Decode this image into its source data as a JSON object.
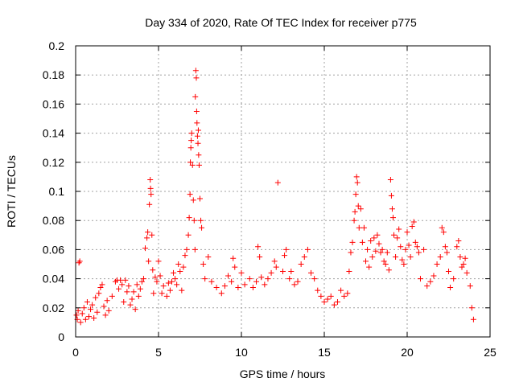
{
  "chart_data": {
    "type": "scatter",
    "title": "Day 334 of 2020, Rate Of TEC Index for receiver p775",
    "xlabel": "GPS time / hours",
    "ylabel": "ROTI / TECUs",
    "xlim": [
      0,
      25
    ],
    "ylim": [
      0,
      0.2
    ],
    "xticks": [
      0,
      5,
      10,
      15,
      20,
      25
    ],
    "yticks": [
      0,
      0.02,
      0.04,
      0.06,
      0.08,
      0.1,
      0.12,
      0.14,
      0.16,
      0.18,
      0.2
    ],
    "xtick_labels": [
      "0",
      "5",
      "10",
      "15",
      "20",
      "25"
    ],
    "ytick_labels": [
      "0",
      "0.02",
      "0.04",
      "0.06",
      "0.08",
      "0.1",
      "0.12",
      "0.14",
      "0.16",
      "0.18",
      "0.2"
    ],
    "grid": true,
    "marker": "+",
    "series": [
      {
        "name": "ROTI",
        "color": "#ff0000",
        "points": [
          [
            0.05,
            0.015
          ],
          [
            0.1,
            0.012
          ],
          [
            0.15,
            0.018
          ],
          [
            0.2,
            0.051
          ],
          [
            0.25,
            0.052
          ],
          [
            0.3,
            0.01
          ],
          [
            0.4,
            0.016
          ],
          [
            0.5,
            0.02
          ],
          [
            0.6,
            0.012
          ],
          [
            0.7,
            0.024
          ],
          [
            0.8,
            0.014
          ],
          [
            0.9,
            0.019
          ],
          [
            1.0,
            0.022
          ],
          [
            1.1,
            0.013
          ],
          [
            1.2,
            0.027
          ],
          [
            1.3,
            0.017
          ],
          [
            1.4,
            0.03
          ],
          [
            1.5,
            0.034
          ],
          [
            1.6,
            0.036
          ],
          [
            1.7,
            0.021
          ],
          [
            1.8,
            0.015
          ],
          [
            1.9,
            0.025
          ],
          [
            2.0,
            0.018
          ],
          [
            2.2,
            0.028
          ],
          [
            2.4,
            0.038
          ],
          [
            2.5,
            0.039
          ],
          [
            2.6,
            0.033
          ],
          [
            2.7,
            0.039
          ],
          [
            2.8,
            0.036
          ],
          [
            2.9,
            0.024
          ],
          [
            3.0,
            0.039
          ],
          [
            3.1,
            0.031
          ],
          [
            3.2,
            0.035
          ],
          [
            3.3,
            0.022
          ],
          [
            3.4,
            0.026
          ],
          [
            3.5,
            0.031
          ],
          [
            3.6,
            0.019
          ],
          [
            3.7,
            0.036
          ],
          [
            3.8,
            0.028
          ],
          [
            3.9,
            0.033
          ],
          [
            4.0,
            0.038
          ],
          [
            4.1,
            0.04
          ],
          [
            4.2,
            0.061
          ],
          [
            4.3,
            0.068
          ],
          [
            4.35,
            0.072
          ],
          [
            4.4,
            0.052
          ],
          [
            4.45,
            0.091
          ],
          [
            4.5,
            0.108
          ],
          [
            4.52,
            0.102
          ],
          [
            4.55,
            0.098
          ],
          [
            4.6,
            0.07
          ],
          [
            4.65,
            0.046
          ],
          [
            4.7,
            0.03
          ],
          [
            4.8,
            0.041
          ],
          [
            4.9,
            0.038
          ],
          [
            5.0,
            0.052
          ],
          [
            5.1,
            0.042
          ],
          [
            5.2,
            0.03
          ],
          [
            5.3,
            0.035
          ],
          [
            5.5,
            0.028
          ],
          [
            5.6,
            0.037
          ],
          [
            5.7,
            0.032
          ],
          [
            5.8,
            0.038
          ],
          [
            5.9,
            0.044
          ],
          [
            6.0,
            0.04
          ],
          [
            6.1,
            0.036
          ],
          [
            6.2,
            0.05
          ],
          [
            6.3,
            0.045
          ],
          [
            6.4,
            0.032
          ],
          [
            6.5,
            0.048
          ],
          [
            6.6,
            0.056
          ],
          [
            6.7,
            0.06
          ],
          [
            6.8,
            0.07
          ],
          [
            6.85,
            0.082
          ],
          [
            6.9,
            0.098
          ],
          [
            6.92,
            0.12
          ],
          [
            6.95,
            0.13
          ],
          [
            6.97,
            0.135
          ],
          [
            7.0,
            0.14
          ],
          [
            7.05,
            0.118
          ],
          [
            7.1,
            0.094
          ],
          [
            7.15,
            0.08
          ],
          [
            7.2,
            0.06
          ],
          [
            7.22,
            0.165
          ],
          [
            7.25,
            0.183
          ],
          [
            7.28,
            0.178
          ],
          [
            7.3,
            0.155
          ],
          [
            7.32,
            0.147
          ],
          [
            7.35,
            0.138
          ],
          [
            7.38,
            0.133
          ],
          [
            7.4,
            0.142
          ],
          [
            7.42,
            0.125
          ],
          [
            7.45,
            0.118
          ],
          [
            7.5,
            0.095
          ],
          [
            7.55,
            0.08
          ],
          [
            7.6,
            0.075
          ],
          [
            7.7,
            0.05
          ],
          [
            7.8,
            0.04
          ],
          [
            8.0,
            0.055
          ],
          [
            8.2,
            0.038
          ],
          [
            8.5,
            0.034
          ],
          [
            8.8,
            0.03
          ],
          [
            9.0,
            0.035
          ],
          [
            9.2,
            0.042
          ],
          [
            9.4,
            0.038
          ],
          [
            9.5,
            0.054
          ],
          [
            9.6,
            0.048
          ],
          [
            9.8,
            0.034
          ],
          [
            10.0,
            0.044
          ],
          [
            10.2,
            0.036
          ],
          [
            10.5,
            0.04
          ],
          [
            10.7,
            0.034
          ],
          [
            10.9,
            0.038
          ],
          [
            11.0,
            0.062
          ],
          [
            11.1,
            0.055
          ],
          [
            11.2,
            0.041
          ],
          [
            11.4,
            0.036
          ],
          [
            11.6,
            0.04
          ],
          [
            11.8,
            0.044
          ],
          [
            12.0,
            0.052
          ],
          [
            12.1,
            0.048
          ],
          [
            12.2,
            0.106
          ],
          [
            12.5,
            0.045
          ],
          [
            12.6,
            0.056
          ],
          [
            12.7,
            0.06
          ],
          [
            12.9,
            0.04
          ],
          [
            13.0,
            0.045
          ],
          [
            13.2,
            0.036
          ],
          [
            13.4,
            0.038
          ],
          [
            13.6,
            0.05
          ],
          [
            13.8,
            0.055
          ],
          [
            14.0,
            0.06
          ],
          [
            14.2,
            0.044
          ],
          [
            14.4,
            0.04
          ],
          [
            14.6,
            0.032
          ],
          [
            14.8,
            0.028
          ],
          [
            15.0,
            0.024
          ],
          [
            15.2,
            0.026
          ],
          [
            15.4,
            0.028
          ],
          [
            15.6,
            0.022
          ],
          [
            15.8,
            0.024
          ],
          [
            16.0,
            0.032
          ],
          [
            16.2,
            0.028
          ],
          [
            16.4,
            0.03
          ],
          [
            16.5,
            0.045
          ],
          [
            16.6,
            0.058
          ],
          [
            16.7,
            0.065
          ],
          [
            16.8,
            0.08
          ],
          [
            16.85,
            0.086
          ],
          [
            16.9,
            0.098
          ],
          [
            16.95,
            0.11
          ],
          [
            17.0,
            0.106
          ],
          [
            17.05,
            0.09
          ],
          [
            17.1,
            0.075
          ],
          [
            17.2,
            0.088
          ],
          [
            17.3,
            0.065
          ],
          [
            17.4,
            0.075
          ],
          [
            17.5,
            0.052
          ],
          [
            17.6,
            0.06
          ],
          [
            17.7,
            0.048
          ],
          [
            17.8,
            0.066
          ],
          [
            17.9,
            0.055
          ],
          [
            18.0,
            0.068
          ],
          [
            18.1,
            0.059
          ],
          [
            18.2,
            0.07
          ],
          [
            18.3,
            0.064
          ],
          [
            18.4,
            0.058
          ],
          [
            18.5,
            0.06
          ],
          [
            18.6,
            0.052
          ],
          [
            18.7,
            0.05
          ],
          [
            18.8,
            0.058
          ],
          [
            18.9,
            0.046
          ],
          [
            19.0,
            0.108
          ],
          [
            19.05,
            0.097
          ],
          [
            19.1,
            0.088
          ],
          [
            19.15,
            0.082
          ],
          [
            19.2,
            0.07
          ],
          [
            19.3,
            0.055
          ],
          [
            19.4,
            0.068
          ],
          [
            19.5,
            0.074
          ],
          [
            19.6,
            0.062
          ],
          [
            19.7,
            0.053
          ],
          [
            19.8,
            0.05
          ],
          [
            19.9,
            0.06
          ],
          [
            20.0,
            0.072
          ],
          [
            20.1,
            0.063
          ],
          [
            20.2,
            0.055
          ],
          [
            20.3,
            0.076
          ],
          [
            20.4,
            0.079
          ],
          [
            20.5,
            0.065
          ],
          [
            20.6,
            0.062
          ],
          [
            20.7,
            0.058
          ],
          [
            20.8,
            0.04
          ],
          [
            21.0,
            0.06
          ],
          [
            21.2,
            0.035
          ],
          [
            21.4,
            0.038
          ],
          [
            21.6,
            0.042
          ],
          [
            21.8,
            0.05
          ],
          [
            22.0,
            0.055
          ],
          [
            22.1,
            0.075
          ],
          [
            22.2,
            0.072
          ],
          [
            22.3,
            0.062
          ],
          [
            22.4,
            0.058
          ],
          [
            22.5,
            0.045
          ],
          [
            22.6,
            0.034
          ],
          [
            22.8,
            0.04
          ],
          [
            23.0,
            0.062
          ],
          [
            23.1,
            0.066
          ],
          [
            23.2,
            0.055
          ],
          [
            23.3,
            0.048
          ],
          [
            23.4,
            0.05
          ],
          [
            23.5,
            0.054
          ],
          [
            23.6,
            0.044
          ],
          [
            23.8,
            0.035
          ],
          [
            23.9,
            0.02
          ],
          [
            24.0,
            0.012
          ]
        ]
      }
    ]
  }
}
